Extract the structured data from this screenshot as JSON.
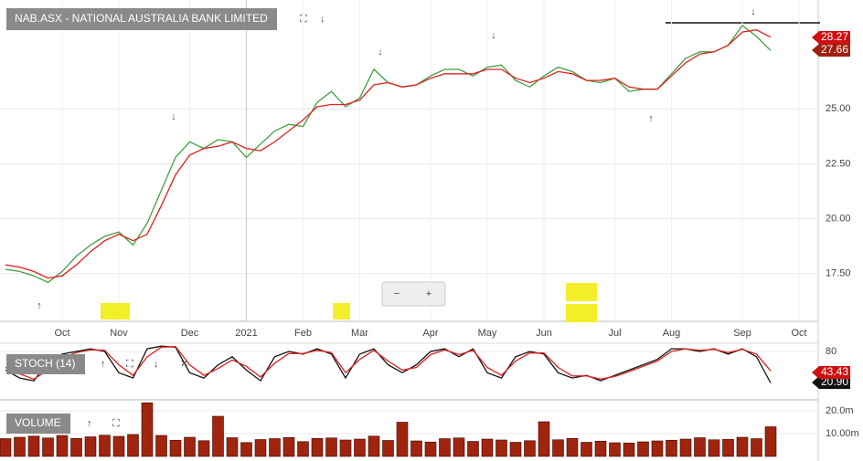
{
  "chart_data": [
    {
      "type": "line",
      "title": "NAB.ASX - NATIONAL AUSTRALIA BANK LIMITED",
      "categories": [
        null,
        null,
        null,
        null,
        "Oct",
        null,
        null,
        null,
        "Nov",
        null,
        null,
        null,
        null,
        "Dec",
        null,
        null,
        null,
        "2021",
        null,
        null,
        null,
        "Feb",
        null,
        null,
        null,
        "Mar",
        null,
        null,
        null,
        null,
        "Apr",
        null,
        null,
        null,
        "May",
        null,
        null,
        null,
        "Jun",
        null,
        null,
        null,
        null,
        "Jul",
        null,
        null,
        null,
        "Aug",
        null,
        null,
        null,
        null,
        "Sep",
        null,
        null,
        null,
        "Oct"
      ],
      "series": [
        {
          "color": "#3f9f3f",
          "values": [
            17.7,
            17.6,
            17.4,
            17.1,
            17.6,
            18.3,
            18.8,
            19.2,
            19.4,
            18.8,
            19.8,
            21.3,
            22.8,
            23.5,
            23.2,
            23.6,
            23.5,
            22.8,
            23.4,
            24.0,
            24.3,
            24.2,
            25.3,
            25.8,
            25.1,
            25.5,
            26.8,
            26.2,
            26.0,
            26.1,
            26.5,
            26.8,
            26.8,
            26.5,
            26.9,
            27.0,
            26.3,
            26.0,
            26.5,
            26.9,
            26.7,
            26.3,
            26.2,
            26.4,
            25.8,
            25.9,
            25.9,
            26.6,
            27.3,
            27.6,
            27.6,
            27.9,
            28.8,
            28.3,
            27.66,
            null,
            null
          ]
        },
        {
          "color": "#e02020",
          "values": [
            17.9,
            17.8,
            17.6,
            17.3,
            17.4,
            17.9,
            18.5,
            19.0,
            19.3,
            19.0,
            19.3,
            20.6,
            22.0,
            22.9,
            23.2,
            23.3,
            23.5,
            23.2,
            23.1,
            23.5,
            24.0,
            24.5,
            25.1,
            25.2,
            25.2,
            25.4,
            26.1,
            26.2,
            26.0,
            26.1,
            26.4,
            26.6,
            26.6,
            26.6,
            26.8,
            26.8,
            26.4,
            26.2,
            26.4,
            26.7,
            26.6,
            26.3,
            26.3,
            26.4,
            26.0,
            25.9,
            25.9,
            26.5,
            27.1,
            27.5,
            27.6,
            27.9,
            28.5,
            28.6,
            28.27,
            null,
            null
          ]
        }
      ],
      "ylim": [
        15.33,
        29.96
      ],
      "yticks": [
        {
          "value": 17.5,
          "label": "17.50"
        },
        {
          "value": 20,
          "label": "20.00"
        },
        {
          "value": 22.5,
          "label": "22.50"
        },
        {
          "value": 25,
          "label": "25.00"
        }
      ],
      "grid": true
    },
    {
      "type": "line",
      "title": "STOCH (14)",
      "series": [
        {
          "color": "#111111",
          "values": [
            45,
            30,
            25,
            60,
            75,
            80,
            85,
            80,
            40,
            30,
            85,
            90,
            88,
            40,
            30,
            55,
            70,
            45,
            25,
            70,
            80,
            75,
            85,
            75,
            30,
            75,
            85,
            55,
            40,
            55,
            80,
            85,
            70,
            85,
            40,
            30,
            70,
            80,
            75,
            40,
            30,
            35,
            25,
            35,
            45,
            55,
            65,
            85,
            85,
            80,
            85,
            75,
            85,
            70,
            20.9
          ],
          "value_labels": [
            null,
            null,
            null,
            null,
            null,
            null,
            null,
            null,
            null,
            null,
            null,
            null,
            null,
            null,
            null,
            null,
            null,
            null,
            null,
            null,
            null,
            null,
            null,
            null,
            null,
            null,
            null,
            null,
            null,
            null,
            null,
            null,
            null,
            null,
            null,
            null,
            null,
            null,
            null,
            null,
            null,
            null,
            null,
            null,
            null,
            null,
            null,
            null,
            null,
            null,
            null,
            null,
            null,
            null,
            "20.90"
          ]
        },
        {
          "color": "#e02020",
          "values": [
            50,
            38,
            28,
            45,
            68,
            78,
            83,
            82,
            55,
            35,
            70,
            88,
            89,
            55,
            35,
            48,
            64,
            52,
            32,
            58,
            76,
            76,
            82,
            78,
            40,
            65,
            82,
            62,
            45,
            50,
            74,
            83,
            74,
            82,
            50,
            35,
            62,
            77,
            77,
            50,
            34,
            34,
            28,
            33,
            42,
            52,
            62,
            80,
            85,
            82,
            84,
            78,
            84,
            75,
            43.43
          ]
        }
      ],
      "ylim": [
        -10.9,
        105.7
      ],
      "yticks": [
        80
      ],
      "grid": true
    },
    {
      "type": "bar",
      "title": "VOLUME",
      "color": "#a0240e",
      "values": [
        7800000,
        8400000,
        8900000,
        8100000,
        9200000,
        7900000,
        8600000,
        9300000,
        8800000,
        9600000,
        23500000,
        9200000,
        7100000,
        8400000,
        6900000,
        17600000,
        8200000,
        6100000,
        7400000,
        7800000,
        8300000,
        6500000,
        7900000,
        8100000,
        7200000,
        7600000,
        8900000,
        7000000,
        15000000,
        6800000,
        6300000,
        7800000,
        8100000,
        6600000,
        7600000,
        7200000,
        6200000,
        6900000,
        15200000,
        7300000,
        7900000,
        6200000,
        6700000,
        6000000,
        5900000,
        6400000,
        6800000,
        7100000,
        7600000,
        8200000,
        7300000,
        7500000,
        8400000,
        7800000,
        13000000
      ],
      "ylim": [
        0,
        24000000
      ],
      "yticks": [
        {
          "value": 10000000,
          "label": "10.00m"
        },
        {
          "value": 20000000,
          "label": "20.0m"
        }
      ],
      "grid": true
    }
  ]
}
